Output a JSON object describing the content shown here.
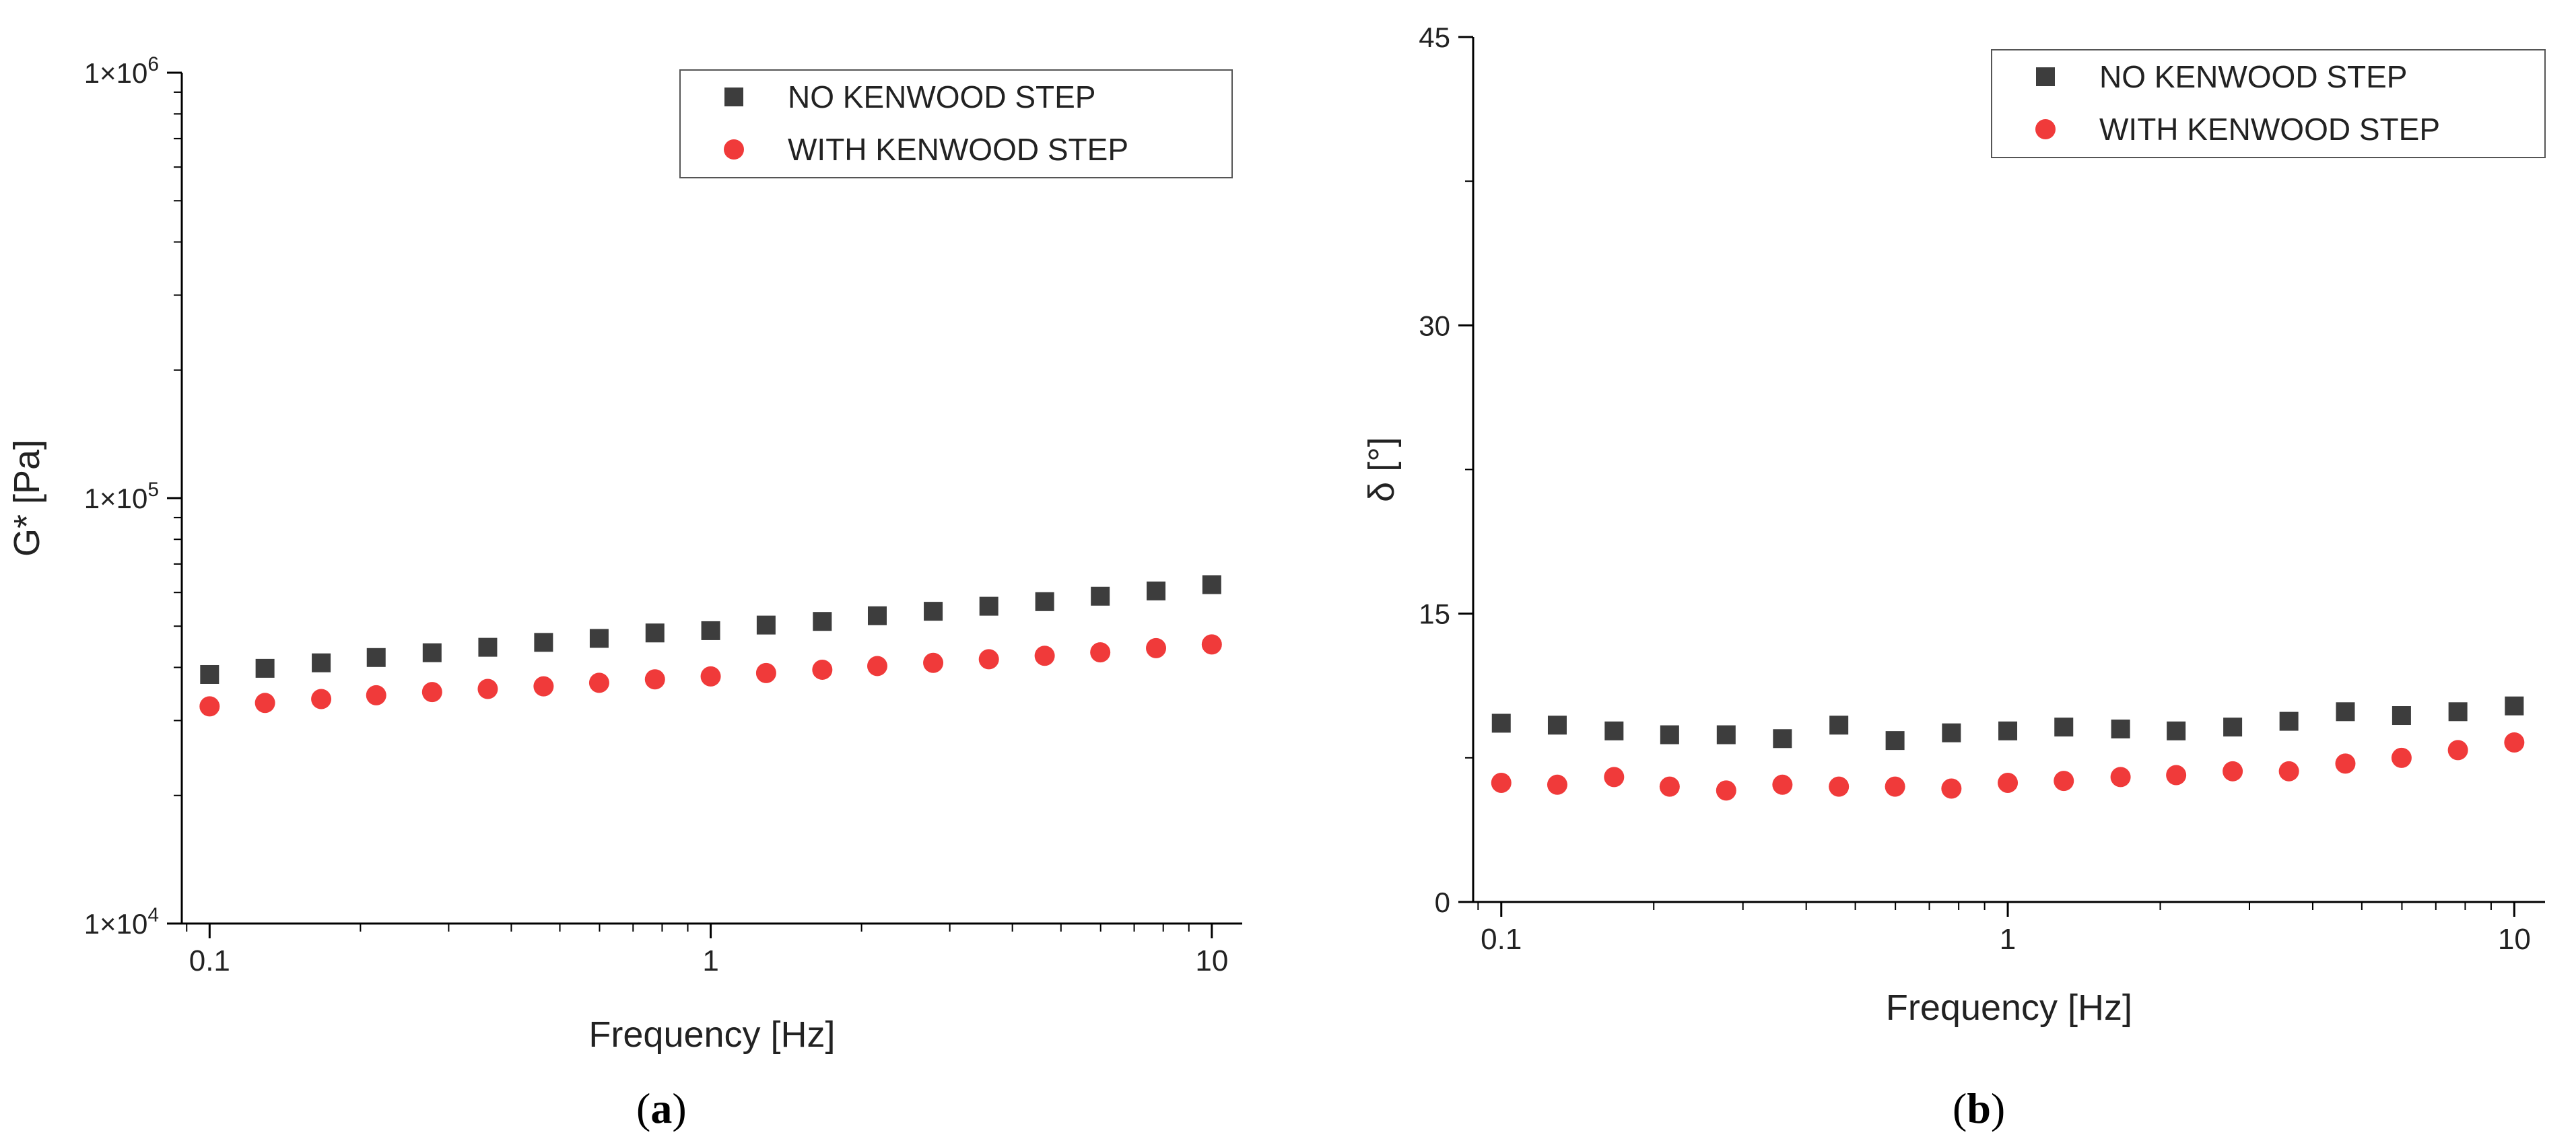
{
  "chart_data": [
    {
      "type": "scatter",
      "panel_label": "a",
      "title": "",
      "xlabel": "Frequency [Hz]",
      "ylabel": "G* [Pa]",
      "xscale": "log",
      "yscale": "log",
      "xlim": [
        0.088,
        11.5
      ],
      "ylim": [
        10000,
        1000000
      ],
      "xticks": [
        {
          "value": 0.1,
          "label": "0.1"
        },
        {
          "value": 1,
          "label": "1"
        },
        {
          "value": 10,
          "label": "10"
        }
      ],
      "yticks": [
        {
          "value": 10000,
          "label": "1×10",
          "exp": "4"
        },
        {
          "value": 100000,
          "label": "1×10",
          "exp": "5"
        },
        {
          "value": 1000000,
          "label": "1×10",
          "exp": "6"
        }
      ],
      "legend_position": "top-right",
      "x": [
        0.1,
        0.129,
        0.167,
        0.215,
        0.278,
        0.359,
        0.464,
        0.599,
        0.774,
        1.0,
        1.29,
        1.67,
        2.15,
        2.78,
        3.59,
        4.64,
        5.99,
        7.74,
        10.0
      ],
      "series": [
        {
          "name": "NO KENWOOD STEP",
          "marker": "square",
          "color": "#3d3d3d",
          "values": [
            38500,
            39800,
            41000,
            42200,
            43300,
            44600,
            45800,
            46800,
            48200,
            48800,
            50300,
            51300,
            52900,
            54200,
            55700,
            57100,
            58800,
            60500,
            62600
          ]
        },
        {
          "name": "WITH KENWOOD STEP",
          "marker": "circle",
          "color": "#f03a3a",
          "values": [
            32400,
            33000,
            33700,
            34400,
            35000,
            35600,
            36100,
            36800,
            37500,
            38100,
            38800,
            39500,
            40300,
            41000,
            41800,
            42600,
            43400,
            44400,
            45300
          ]
        }
      ]
    },
    {
      "type": "scatter",
      "panel_label": "b",
      "title": "",
      "xlabel": "Frequency [Hz]",
      "ylabel": "δ [°]",
      "xscale": "log",
      "yscale": "linear",
      "xlim": [
        0.088,
        11.5
      ],
      "ylim": [
        0,
        45
      ],
      "xticks": [
        {
          "value": 0.1,
          "label": "0.1"
        },
        {
          "value": 1,
          "label": "1"
        },
        {
          "value": 10,
          "label": "10"
        }
      ],
      "yticks": [
        {
          "value": 0,
          "label": "0"
        },
        {
          "value": 15,
          "label": "15"
        },
        {
          "value": 30,
          "label": "30"
        },
        {
          "value": 45,
          "label": "45"
        }
      ],
      "legend_position": "top-right",
      "x": [
        0.1,
        0.129,
        0.167,
        0.215,
        0.278,
        0.359,
        0.464,
        0.599,
        0.774,
        1.0,
        1.29,
        1.67,
        2.15,
        2.78,
        3.59,
        4.64,
        5.99,
        7.74,
        10.0
      ],
      "series": [
        {
          "name": "NO KENWOOD STEP",
          "marker": "square",
          "color": "#3d3d3d",
          "values": [
            9.3,
            9.2,
            8.9,
            8.7,
            8.7,
            8.5,
            9.2,
            8.4,
            8.8,
            8.9,
            9.1,
            9.0,
            8.9,
            9.1,
            9.4,
            9.9,
            9.7,
            9.9,
            10.2
          ]
        },
        {
          "name": "WITH KENWOOD STEP",
          "marker": "circle",
          "color": "#f03a3a",
          "values": [
            6.2,
            6.1,
            6.5,
            6.0,
            5.8,
            6.1,
            6.0,
            6.0,
            5.9,
            6.2,
            6.3,
            6.5,
            6.6,
            6.8,
            6.8,
            7.2,
            7.5,
            7.9,
            8.3
          ]
        }
      ]
    }
  ],
  "captions": {
    "a": "a",
    "b": "b"
  }
}
